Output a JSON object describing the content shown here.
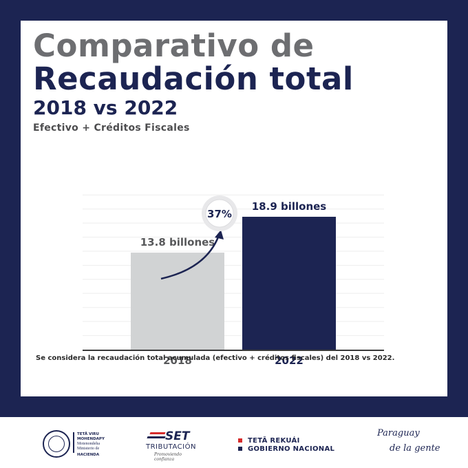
{
  "header": {
    "title_line1": "Comparativo de",
    "title_line2": "Recaudación total",
    "title_line3": "2018 vs 2022",
    "subtitle": "Efectivo + Créditos Fiscales"
  },
  "chart_data": {
    "type": "bar",
    "categories": [
      "2018",
      "2022"
    ],
    "values": [
      13.8,
      18.9
    ],
    "data_labels": [
      "13.8 billones",
      "18.9 billones"
    ],
    "growth_label": "37%",
    "ylim": [
      0,
      22
    ],
    "grid": true,
    "colors": [
      "#d1d3d4",
      "#1c2452"
    ]
  },
  "footnote": "Se considera la recaudación total acumulada (efectivo + créditos fiscales) del 2018 vs 2022.",
  "footer": {
    "org_line1": "TETÃ VIRU MOHENDAPY",
    "org_line2": "Motenondeha",
    "org_line3": "Ministerio de",
    "org_line4": "HACIENDA",
    "set_mark": "SET",
    "set_name": "TRIBUTACIÓN",
    "set_tagline": "Promoviendo confianza",
    "gov_line1": "TETÃ REKUÁI",
    "gov_line2": "GOBIERNO NACIONAL",
    "brand_line1": "Paraguay",
    "brand_line2": "de la gente"
  },
  "colors": {
    "navy": "#1c2452",
    "gray_bar": "#d1d3d4",
    "title_gray": "#6d6e71",
    "red": "#d62b2b"
  }
}
